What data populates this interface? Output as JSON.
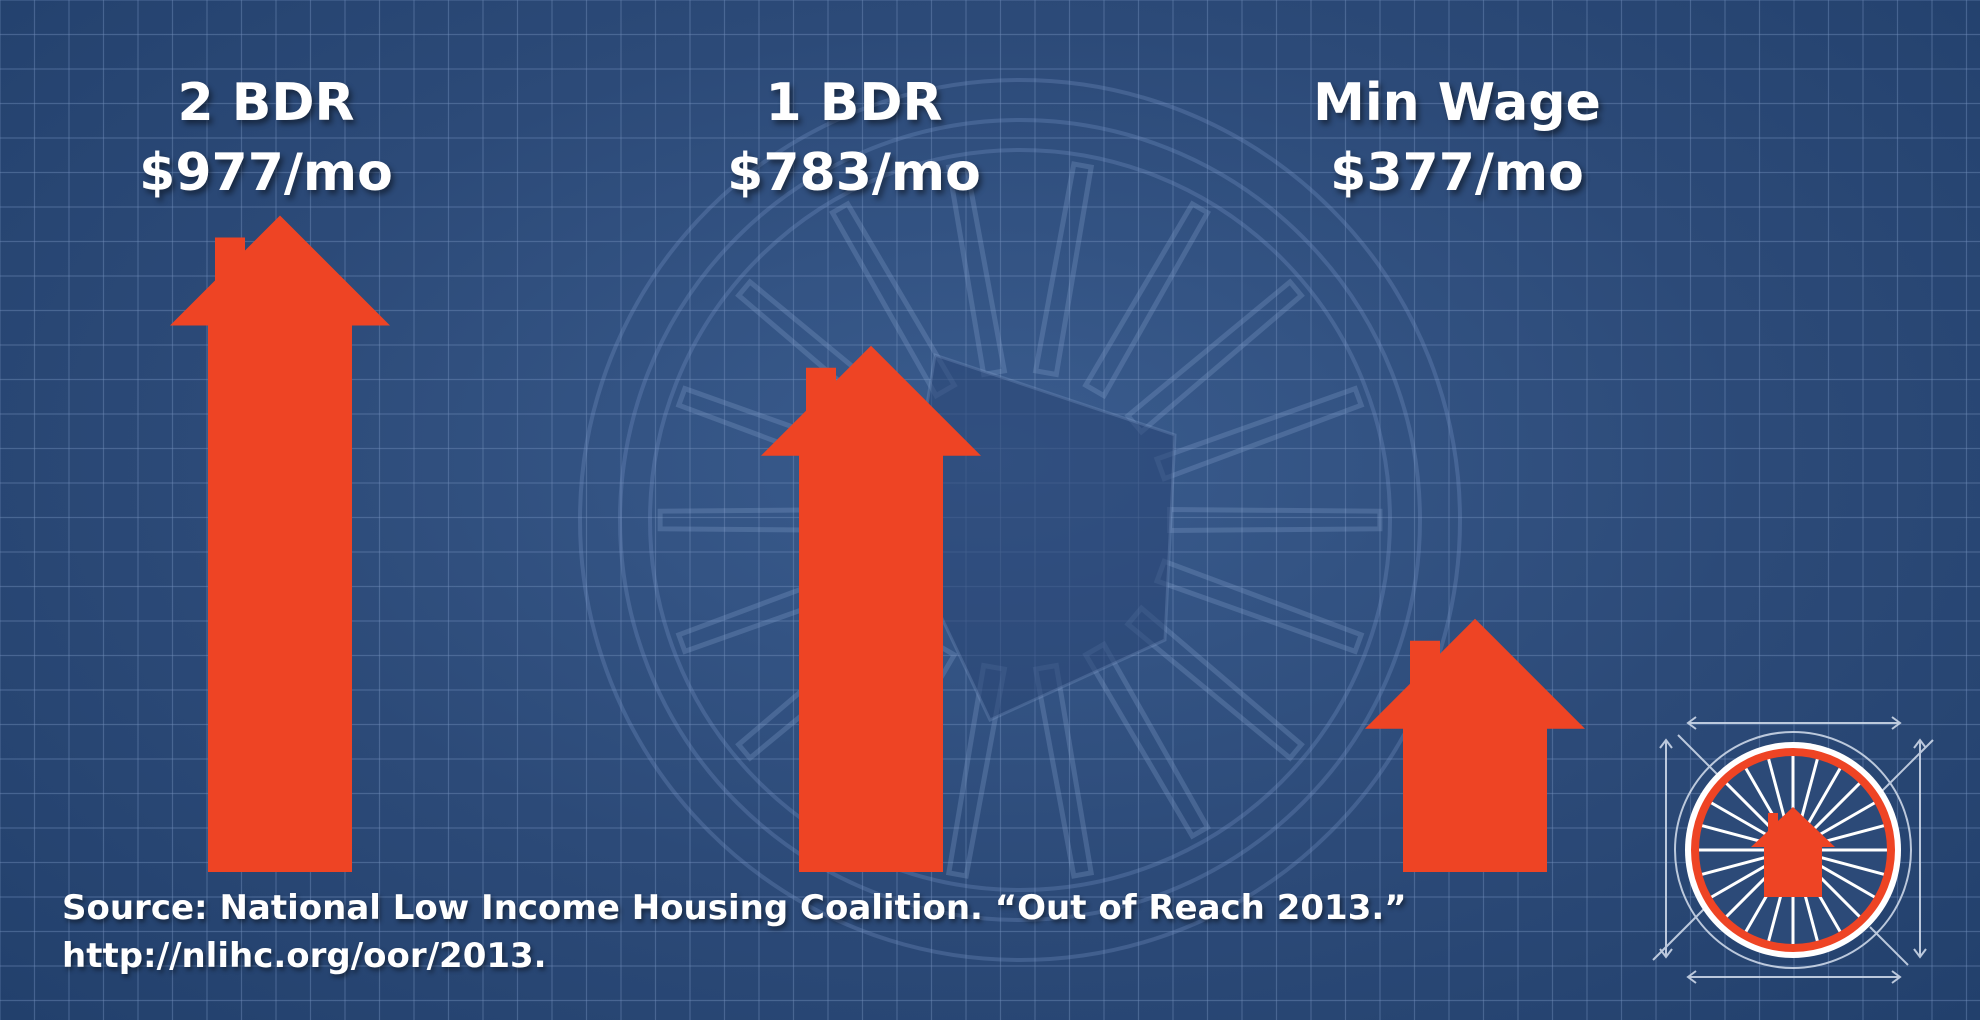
{
  "colors": {
    "background": "#2c4a78",
    "grid": "#6f8cb8",
    "bar": "#ee4424",
    "text": "#ffffff"
  },
  "chart_data": {
    "type": "bar",
    "bar_shape": "house-arrow",
    "categories": [
      "2 BDR",
      "1 BDR",
      "Min Wage"
    ],
    "values": [
      977,
      783,
      377
    ],
    "value_labels": [
      "$977/mo",
      "$783/mo",
      "$377/mo"
    ],
    "unit": "$/mo",
    "title": "",
    "xlabel": "",
    "ylabel": "",
    "ylim": [
      0,
      1000
    ],
    "grid": true,
    "legend": "none"
  },
  "source": {
    "line1": "Source: National Low Income Housing Coalition. “Out of Reach 2013.”",
    "line2": "http://nlihc.org/oor/2013."
  },
  "logo": {
    "icon": "bicycle-wheel-house-icon"
  }
}
